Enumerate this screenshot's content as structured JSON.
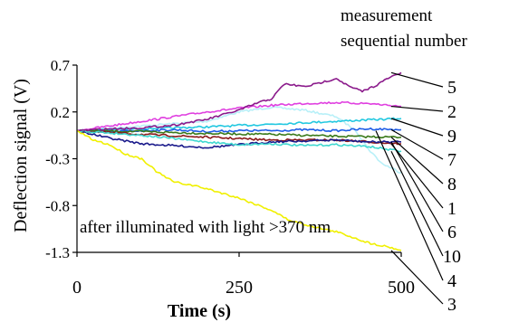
{
  "chart_data": {
    "type": "line",
    "title": "",
    "xlabel": "Time (s)",
    "ylabel": "Deflection signal (V)",
    "xlim": [
      0,
      500
    ],
    "ylim": [
      -1.3,
      0.7
    ],
    "x_ticks": [
      0,
      250,
      500
    ],
    "x_tick_labels": [
      "0",
      "250",
      "500"
    ],
    "y_ticks": [
      0.7,
      0.2,
      -0.3,
      -0.8,
      -1.3
    ],
    "y_tick_labels": [
      "0.7",
      "0.2",
      "-0.3",
      "-0.8",
      "-1.3"
    ],
    "grid": false,
    "legend_title": [
      "measurement",
      "sequential number"
    ],
    "annotation": "after illuminated with light >370 nm",
    "series": [
      {
        "label": "5",
        "color": "#8B1A8B",
        "x": [
          0,
          50,
          100,
          150,
          200,
          250,
          280,
          300,
          320,
          350,
          370,
          400,
          420,
          440,
          460,
          480,
          500
        ],
        "y": [
          0,
          0.02,
          0.03,
          0.06,
          0.12,
          0.22,
          0.3,
          0.34,
          0.5,
          0.47,
          0.5,
          0.56,
          0.47,
          0.42,
          0.48,
          0.56,
          0.62
        ]
      },
      {
        "label": "2",
        "color": "#E040E0",
        "x": [
          0,
          50,
          100,
          150,
          200,
          250,
          300,
          350,
          400,
          450,
          500
        ],
        "y": [
          0,
          0.05,
          0.1,
          0.15,
          0.2,
          0.24,
          0.27,
          0.29,
          0.3,
          0.29,
          0.26
        ]
      },
      {
        "label": "9",
        "color": "#22C8E0",
        "x": [
          0,
          100,
          200,
          300,
          400,
          500
        ],
        "y": [
          0,
          0.02,
          0.04,
          0.07,
          0.1,
          0.13
        ]
      },
      {
        "label": "7",
        "color": "#1E5CE6",
        "x": [
          0,
          50,
          100,
          150,
          200,
          250,
          300,
          350,
          400,
          450,
          500
        ],
        "y": [
          0,
          -0.01,
          0.0,
          0.01,
          -0.01,
          0.0,
          0.0,
          0.01,
          0.0,
          0.02,
          0.01
        ]
      },
      {
        "label": "8",
        "color": "#3A7A1A",
        "x": [
          0,
          100,
          200,
          300,
          400,
          500
        ],
        "y": [
          0,
          -0.01,
          -0.03,
          -0.04,
          -0.06,
          -0.07
        ]
      },
      {
        "label": "1",
        "color": "#8B1A1A",
        "x": [
          0,
          100,
          200,
          300,
          400,
          450,
          500
        ],
        "y": [
          0,
          -0.04,
          -0.07,
          -0.1,
          -0.1,
          -0.12,
          -0.14
        ]
      },
      {
        "label": "6",
        "color": "#1A1A8B",
        "x": [
          0,
          50,
          100,
          150,
          200,
          250,
          300,
          350,
          400,
          450,
          500
        ],
        "y": [
          0,
          -0.08,
          -0.14,
          -0.16,
          -0.18,
          -0.15,
          -0.12,
          -0.11,
          -0.1,
          -0.12,
          -0.12
        ]
      },
      {
        "label": "10",
        "color": "#40D8D0",
        "x": [
          0,
          100,
          200,
          250,
          300,
          350,
          400,
          450,
          480,
          500
        ],
        "y": [
          0,
          -0.05,
          -0.12,
          -0.15,
          -0.14,
          -0.16,
          -0.15,
          -0.17,
          -0.2,
          -0.22
        ]
      },
      {
        "label": "4",
        "color": "#B8F0F8",
        "x": [
          0,
          100,
          200,
          250,
          300,
          350,
          400,
          430,
          450,
          470,
          500
        ],
        "y": [
          0,
          0.05,
          0.1,
          0.2,
          0.25,
          0.22,
          0.15,
          0.0,
          -0.2,
          -0.35,
          -0.45
        ]
      },
      {
        "label": "3",
        "color": "#F0F000",
        "x": [
          0,
          25,
          50,
          75,
          100,
          125,
          150,
          175,
          200,
          250,
          300,
          325,
          350,
          380,
          400,
          430,
          450,
          480,
          500
        ],
        "y": [
          0,
          -0.1,
          -0.15,
          -0.25,
          -0.3,
          -0.45,
          -0.55,
          -0.58,
          -0.62,
          -0.72,
          -0.85,
          -0.95,
          -1.0,
          -1.05,
          -1.08,
          -1.15,
          -1.2,
          -1.24,
          -1.28
        ]
      }
    ]
  }
}
